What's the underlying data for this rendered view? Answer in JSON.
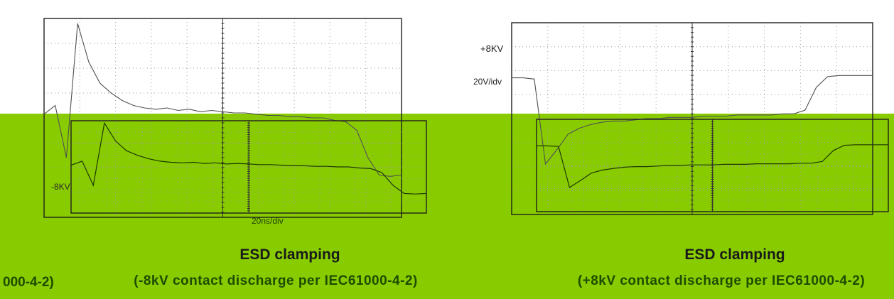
{
  "chart_data": [
    {
      "type": "line",
      "title": "ESD clamping",
      "subtitle": "(-8kV contact discharge per IEC61000-4-2)",
      "xlabel": "20ns/div",
      "ylabel": "",
      "annotations": [
        "-8KV",
        "20ns/div"
      ],
      "grid": true,
      "x_divisions": 10,
      "y_divisions": 8,
      "series": [
        {
          "values": [
            0.3,
            1.0,
            -3.2,
            7.6,
            4.5,
            2.8,
            2.0,
            1.4,
            1.0,
            0.8,
            0.7,
            0.8,
            0.6,
            0.7,
            0.5,
            0.6,
            0.5,
            0.4,
            0.4,
            0.3,
            0.2,
            0.2,
            0.1,
            0.1,
            0.0,
            0.0,
            -0.2,
            -0.3,
            -1.0,
            -3.2,
            -4.6,
            -4.7,
            -4.6
          ]
        }
      ]
    },
    {
      "type": "line",
      "title": "ESD clamping",
      "subtitle": "(+8kV contact discharge per IEC61000-4-2)",
      "xlabel": "",
      "ylabel": "20V/idv",
      "annotations": [
        "+8KV",
        "20V/idv"
      ],
      "grid": true,
      "x_divisions": 10,
      "y_divisions": 8,
      "series": [
        {
          "values": [
            3.4,
            3.4,
            3.3,
            -3.8,
            -2.6,
            -1.3,
            -0.8,
            -0.5,
            -0.3,
            -0.2,
            -0.2,
            -0.1,
            0.0,
            0.0,
            0.1,
            0.1,
            0.1,
            0.2,
            0.2,
            0.2,
            0.3,
            0.3,
            0.3,
            0.3,
            0.4,
            0.4,
            0.7,
            2.6,
            3.5,
            3.6,
            3.6,
            3.6,
            3.6
          ]
        }
      ]
    }
  ],
  "captions": {
    "left_title": "ESD clamping",
    "left_subtitle": "(-8kV contact discharge per IEC61000-4-2)",
    "right_title": "ESD clamping",
    "right_subtitle": "(+8kV contact discharge per IEC61000-4-2)",
    "left_edge_fragment": "000-4-2)"
  },
  "labels": {
    "left_level": "-8KV",
    "left_timebase": "20ns/div",
    "right_level": "+8KV",
    "right_scale": "20V/idv"
  }
}
